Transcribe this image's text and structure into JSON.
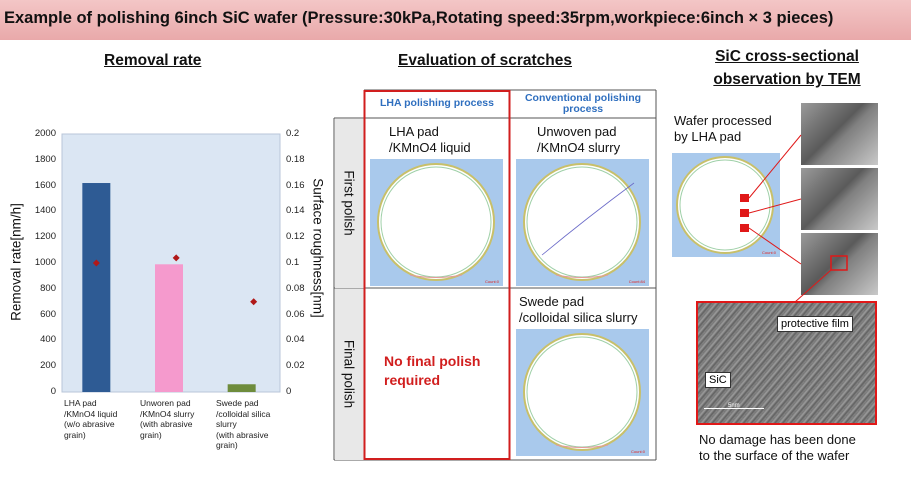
{
  "header": {
    "title": "Example of polishing 6inch SiC wafer (Pressure:30kPa,Rotating speed:35rpm,workpiece:6inch × 3 pieces)"
  },
  "removal": {
    "section_title": "Removal rate"
  },
  "chart_data": {
    "type": "bar",
    "title": "Removal rate",
    "categories": [
      "LHA pad\n/KMnO4 liquid\n(w/o abrasive\ngrain)",
      "Unworen pad\n/KMnO4 slurry\n(with abrasive\ngrain)",
      "Swede pad\n/colloidal silica\nslurry\n(with abrasive\ngrain)"
    ],
    "series": [
      {
        "values": [
          1620,
          990,
          60
        ],
        "colors": [
          "#2e5b94",
          "#f59acd",
          "#6e8c3c"
        ]
      },
      {
        "values": [
          0.1,
          0.104,
          0.07
        ],
        "marker": "diamond",
        "color": "#b01818"
      }
    ],
    "ylabel": "Removal rate[nm/h]",
    "y2label": "Surface roughness[nm]",
    "ylim": [
      0,
      2000
    ],
    "y2lim": [
      0,
      0.2
    ],
    "yticks": [
      "0",
      "200",
      "400",
      "600",
      "800",
      "1000",
      "1200",
      "1400",
      "1600",
      "1800",
      "2000"
    ],
    "y2ticks": [
      "0",
      "0.02",
      "0.04",
      "0.06",
      "0.08",
      "0.1",
      "0.12",
      "0.14",
      "0.16",
      "0.18",
      "0.2"
    ],
    "grid": false
  },
  "scratch": {
    "section_title": "Evaluation of scratches",
    "col_lha": "LHA polishing process",
    "col_conv": "Conventional polishing process",
    "row_first": "First polish",
    "row_final": "Final polish",
    "lha_first": "LHA pad\n/KMnO4 liquid",
    "conv_first": "Unwoven pad\n/KMnO4 slurry",
    "conv_final": "Swede pad\n/colloidal silica slurry",
    "lha_final": "No final polish required",
    "count_a": "Count:0",
    "count_b": "Count:84",
    "count_c": "Count:0"
  },
  "tem": {
    "section_title_1": "SiC cross-sectional",
    "section_title_2": "observation by TEM",
    "wafer_label": "Wafer processed\nby LHA pad",
    "wafer_count": "Count:0",
    "film_label": "protective film",
    "sic_label": "SiC",
    "scale_label": "5nm",
    "caption": "No damage has been done\nto the surface of the wafer"
  }
}
